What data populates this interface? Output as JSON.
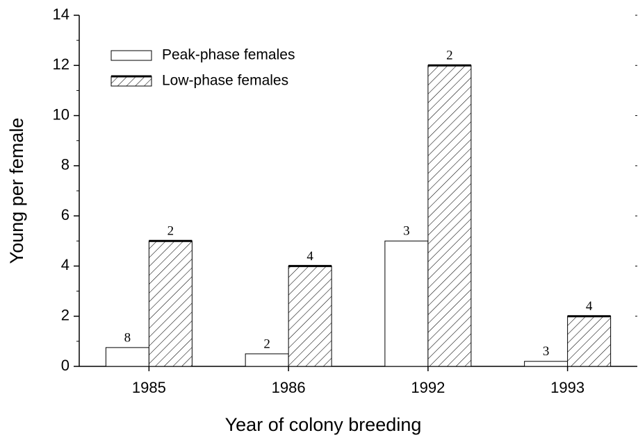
{
  "chart_data": {
    "type": "bar",
    "xlabel": "Year of colony breeding",
    "ylabel": "Young per female",
    "categories": [
      "1985",
      "1986",
      "1992",
      "1993"
    ],
    "series": [
      {
        "name": "Peak-phase females",
        "color": "#ffffff",
        "hatch": false,
        "values": [
          0.75,
          0.5,
          5,
          0.2
        ],
        "sample_sizes": [
          8,
          2,
          3,
          3
        ]
      },
      {
        "name": "Low-phase females",
        "color": "#ffffff",
        "hatch": true,
        "values": [
          5,
          4,
          12,
          2
        ],
        "sample_sizes": [
          2,
          4,
          2,
          4
        ]
      }
    ],
    "ylim": [
      0,
      14
    ],
    "yticks": [
      0,
      2,
      4,
      6,
      8,
      10,
      12,
      14
    ],
    "legend": "upper-left"
  }
}
